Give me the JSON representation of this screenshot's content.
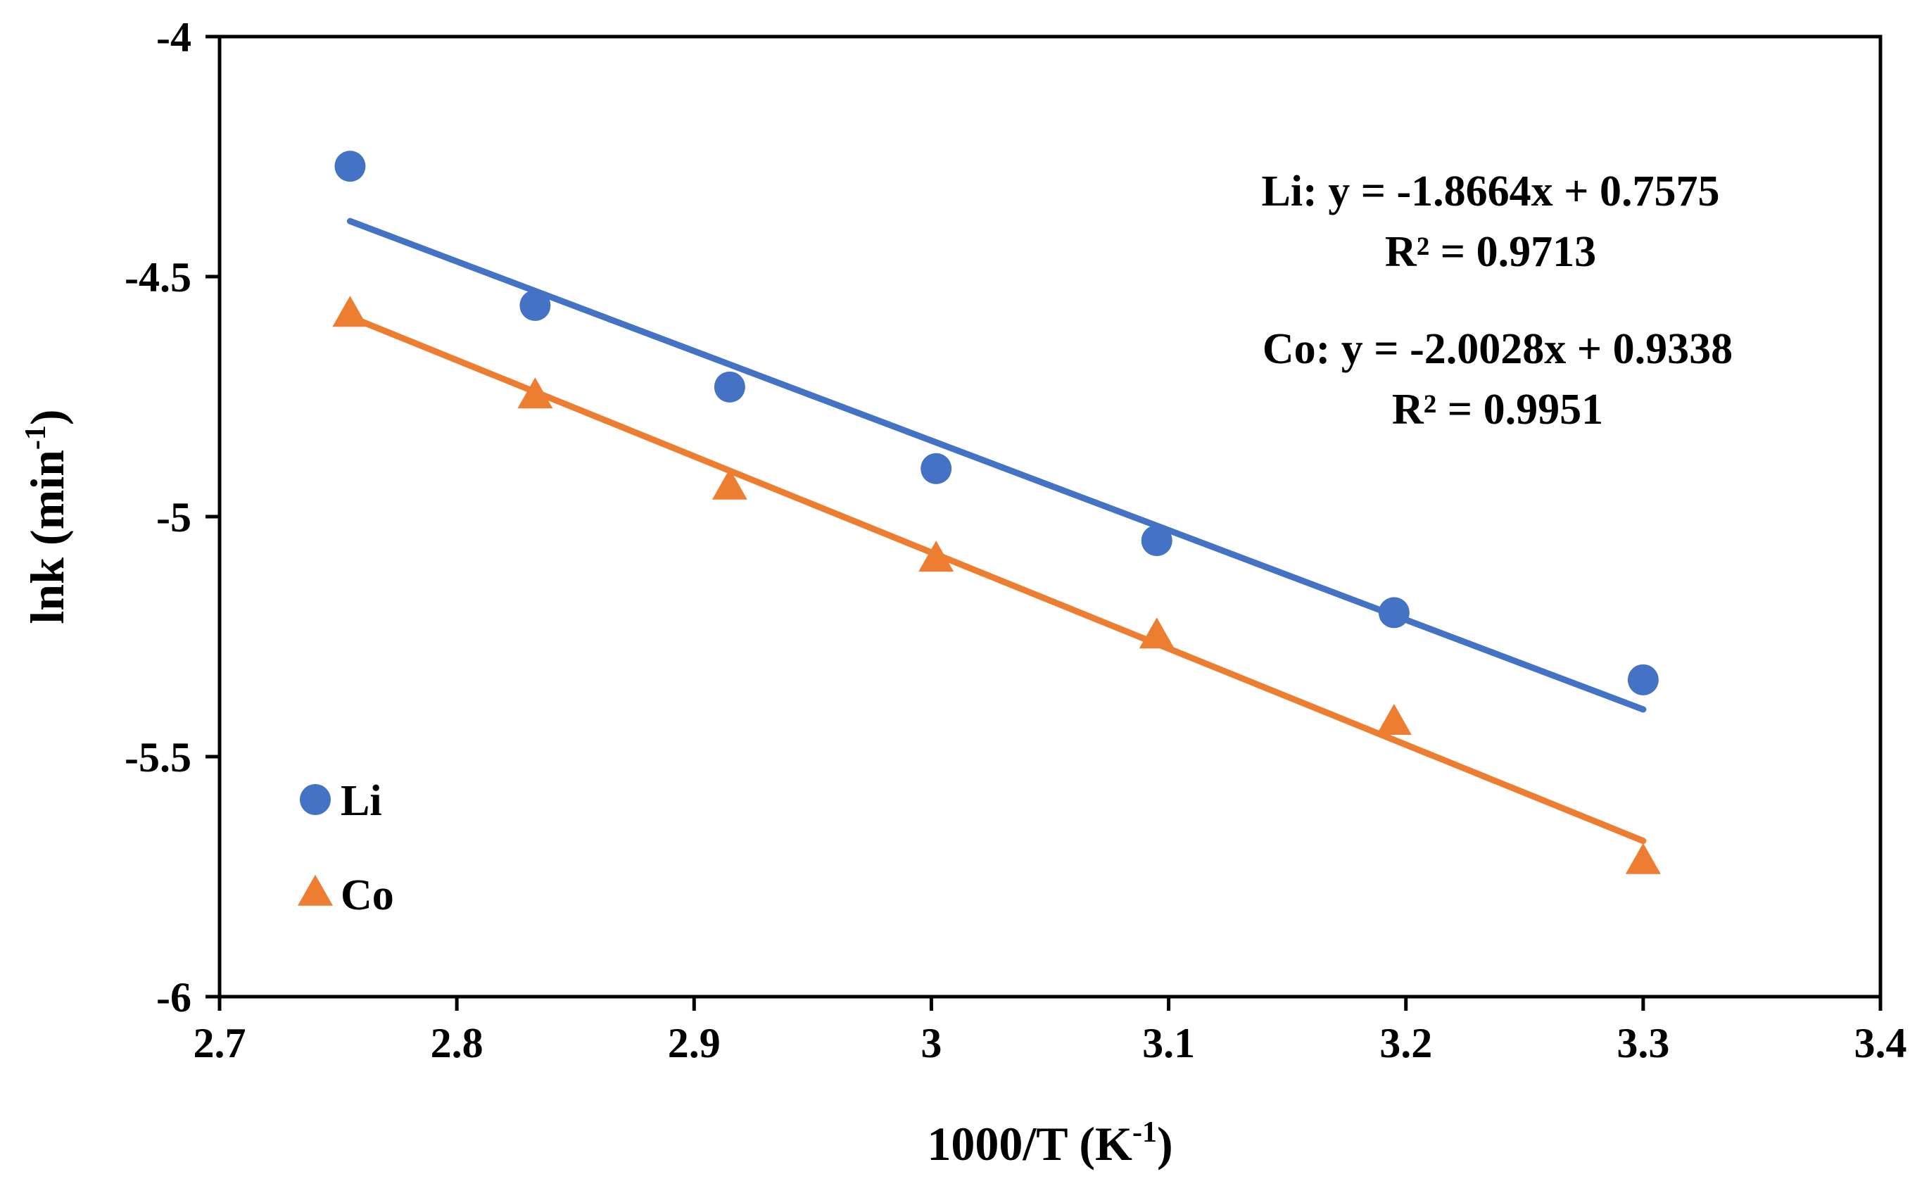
{
  "chart_data": {
    "type": "scatter",
    "title": "",
    "xlabel": "1000/T (K⁻¹)",
    "ylabel": "lnk (min⁻¹)",
    "xlim": [
      2.7,
      3.4
    ],
    "ylim": [
      -6,
      -4
    ],
    "xticks": [
      2.7,
      2.8,
      2.9,
      3.0,
      3.1,
      3.2,
      3.3,
      3.4
    ],
    "xtick_labels": [
      "2.7",
      "2.8",
      "2.9",
      "3",
      "3.1",
      "3.2",
      "3.3",
      "3.4"
    ],
    "yticks": [
      -4,
      -4.5,
      -5,
      -5.5,
      -6
    ],
    "ytick_labels": [
      "-4",
      "-4.5",
      "-5",
      "-5.5",
      "-6"
    ],
    "grid": false,
    "legend_position": "bottom-left",
    "series": [
      {
        "name": "Li",
        "marker": "circle",
        "color": "#4472C4",
        "x": [
          2.755,
          2.833,
          2.915,
          3.002,
          3.095,
          3.195,
          3.3
        ],
        "y": [
          -4.27,
          -4.56,
          -4.73,
          -4.9,
          -5.05,
          -5.2,
          -5.34
        ],
        "trendline": {
          "slope": -1.8664,
          "intercept": 0.7575,
          "x_range": [
            2.755,
            3.3
          ]
        }
      },
      {
        "name": "Co",
        "marker": "triangle",
        "color": "#ED7D31",
        "x": [
          2.755,
          2.833,
          2.915,
          3.002,
          3.095,
          3.195,
          3.3
        ],
        "y": [
          -4.58,
          -4.75,
          -4.94,
          -5.09,
          -5.25,
          -5.43,
          -5.72
        ],
        "trendline": {
          "slope": -2.0028,
          "intercept": 0.9338,
          "x_range": [
            2.755,
            3.3
          ]
        }
      }
    ],
    "annotations": [
      {
        "name": "li-equation",
        "text": "Li: y = -1.8664x + 0.7575"
      },
      {
        "name": "li-r2",
        "text": "R² = 0.9713"
      },
      {
        "name": "co-equation",
        "text": "Co: y = -2.0028x + 0.9338"
      },
      {
        "name": "co-r2",
        "text": "R² = 0.9951"
      }
    ]
  }
}
